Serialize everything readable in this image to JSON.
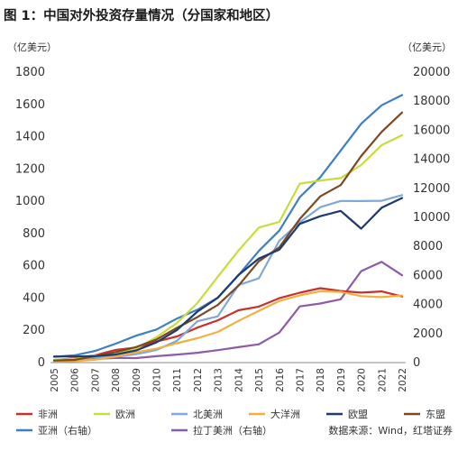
{
  "title": "图 1：中国对外投资存量情况（分国家和地区）",
  "source": "数据来源：Wind，红塔证券",
  "chart_data": {
    "type": "line",
    "title": "图 1：中国对外投资存量情况（分国家和地区）",
    "x": [
      "2005",
      "2006",
      "2007",
      "2008",
      "2009",
      "2010",
      "2011",
      "2012",
      "2013",
      "2014",
      "2015",
      "2016",
      "2017",
      "2018",
      "2019",
      "2020",
      "2021",
      "2022"
    ],
    "y_left": {
      "unit": "（亿美元）",
      "lim": [
        0,
        1800
      ],
      "ticks": [
        0,
        200,
        400,
        600,
        800,
        1000,
        1200,
        1400,
        1600,
        1800
      ]
    },
    "y_right": {
      "unit": "（亿美元）",
      "lim": [
        0,
        20000
      ],
      "ticks": [
        0,
        2000,
        4000,
        6000,
        8000,
        10000,
        12000,
        14000,
        16000,
        18000,
        20000
      ]
    },
    "grid": false,
    "legend_position": "bottom",
    "series": [
      {
        "name": "非洲",
        "axis": "left",
        "color": "#c8302c",
        "values": [
          16,
          26,
          45,
          78,
          93,
          130,
          162,
          217,
          262,
          324,
          347,
          399,
          433,
          461,
          444,
          434,
          441,
          410
        ]
      },
      {
        "name": "欧洲",
        "axis": "left",
        "color": "#c9dc3c",
        "values": [
          16,
          23,
          44,
          51,
          87,
          157,
          245,
          369,
          532,
          694,
          837,
          872,
          1109,
          1128,
          1144,
          1224,
          1348,
          1409
        ]
      },
      {
        "name": "北美洲",
        "axis": "left",
        "color": "#7fa8d8",
        "values": [
          13,
          16,
          32,
          37,
          52,
          78,
          135,
          256,
          287,
          480,
          522,
          755,
          870,
          963,
          1002,
          1001,
          1003,
          1038
        ]
      },
      {
        "name": "大洋洲",
        "axis": "left",
        "color": "#f0b040",
        "values": [
          7,
          9,
          18,
          38,
          64,
          86,
          120,
          151,
          190,
          258,
          321,
          382,
          417,
          442,
          438,
          412,
          406,
          416
        ]
      },
      {
        "name": "欧盟",
        "axis": "left",
        "color": "#1f3a6e",
        "values": [
          38,
          38,
          40,
          50,
          75,
          125,
          202,
          316,
          402,
          542,
          645,
          700,
          860,
          907,
          940,
          830,
          960,
          1020
        ]
      },
      {
        "name": "东盟",
        "axis": "left",
        "color": "#7a4a22",
        "values": [
          13,
          17,
          40,
          65,
          96,
          143,
          215,
          282,
          357,
          476,
          628,
          715,
          890,
          1030,
          1100,
          1280,
          1430,
          1550
        ]
      },
      {
        "name": "亚洲（右轴）",
        "axis": "right",
        "color": "#3e7fc1",
        "values": [
          400,
          500,
          800,
          1300,
          1850,
          2280,
          3030,
          3640,
          4480,
          6010,
          7690,
          9090,
          11390,
          12760,
          14600,
          16450,
          17720,
          18420
        ]
      },
      {
        "name": "拉丁美洲（右轴）",
        "axis": "right",
        "color": "#8e5ba6",
        "values": [
          100,
          200,
          250,
          320,
          310,
          440,
          550,
          680,
          860,
          1060,
          1260,
          2070,
          3870,
          4070,
          4360,
          6300,
          6940,
          6010
        ]
      }
    ]
  }
}
